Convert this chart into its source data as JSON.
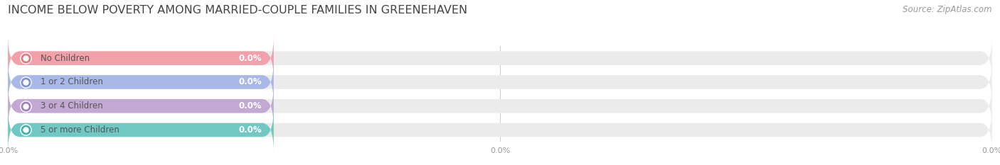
{
  "title": "INCOME BELOW POVERTY AMONG MARRIED-COUPLE FAMILIES IN GREENEHAVEN",
  "source": "Source: ZipAtlas.com",
  "categories": [
    "No Children",
    "1 or 2 Children",
    "3 or 4 Children",
    "5 or more Children"
  ],
  "values": [
    0.0,
    0.0,
    0.0,
    0.0
  ],
  "bar_colors": [
    "#f2a0aa",
    "#a8b8e8",
    "#c4a8d4",
    "#70c8c4"
  ],
  "dot_colors": [
    "#e07880",
    "#8090d0",
    "#a080b8",
    "#48b0ac"
  ],
  "bg_bar_color": "#ebebeb",
  "background_color": "#ffffff",
  "title_fontsize": 11.5,
  "source_fontsize": 8.5,
  "label_fontsize": 8.5,
  "value_fontsize": 8.5,
  "tick_fontsize": 8,
  "xlim": [
    0,
    100
  ],
  "xtick_positions": [
    0,
    50,
    100
  ],
  "xtick_labels": [
    "0.0%",
    "0.0%",
    "0.0%"
  ],
  "value_label_color": "#ffffff",
  "tick_label_color": "#999999",
  "title_color": "#444444",
  "source_color": "#999999",
  "label_text_color": "#555555",
  "gridline_color": "#cccccc"
}
